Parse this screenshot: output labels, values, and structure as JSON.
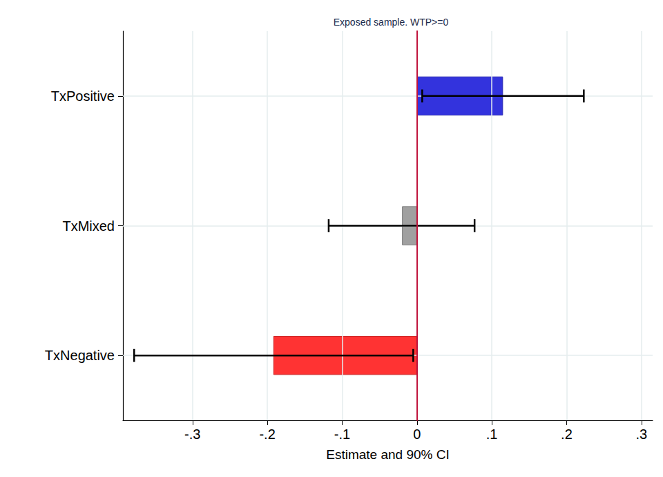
{
  "chart_data": {
    "type": "bar",
    "orientation": "horizontal",
    "title": "Exposed sample. WTP>=0",
    "xlabel": "Estimate and 90% CI",
    "categories": [
      "TxPositive",
      "TxMixed",
      "TxNegative"
    ],
    "values": [
      0.115,
      -0.02,
      -0.192
    ],
    "ci_low": [
      0.007,
      -0.118,
      -0.378
    ],
    "ci_high": [
      0.223,
      0.077,
      -0.005
    ],
    "colors": [
      "#3333dd",
      "#a0a0a0",
      "#ff3333"
    ],
    "xlim": [
      -0.393,
      0.315
    ],
    "xticks": [
      {
        "value": -0.3,
        "label": "-.3"
      },
      {
        "value": -0.2,
        "label": "-.2"
      },
      {
        "value": -0.1,
        "label": "-.1"
      },
      0,
      {
        "value": 0.1,
        "label": ".1"
      },
      {
        "value": 0.2,
        "label": ".2"
      },
      {
        "value": 0.3,
        "label": ".3"
      }
    ],
    "grid": true
  }
}
